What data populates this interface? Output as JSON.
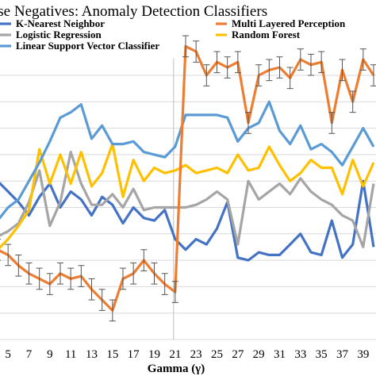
{
  "chart_data": {
    "type": "line",
    "title": "lse Negatives: Anomaly Detection Classifiers",
    "xlabel": "Gamma (γ)",
    "ylabel": "",
    "x": [
      4,
      5,
      6,
      7,
      8,
      9,
      10,
      11,
      12,
      13,
      14,
      15,
      16,
      17,
      18,
      19,
      20,
      21,
      22,
      23,
      24,
      25,
      26,
      27,
      28,
      29,
      30,
      31,
      32,
      33,
      34,
      35,
      36,
      37,
      38,
      39,
      40
    ],
    "xtick_labels": [
      "5",
      "7",
      "9",
      "11",
      "13",
      "15",
      "17",
      "19",
      "21",
      "23",
      "25",
      "27",
      "29",
      "31",
      "33",
      "35",
      "37",
      "39"
    ],
    "xlim": [
      4,
      40
    ],
    "ylim": [
      0,
      10
    ],
    "grid": true,
    "legend": "top",
    "series": [
      {
        "name": "K-Nearest Neighbor",
        "color": "#4472c4",
        "values": [
          6.0,
          5.6,
          5.2,
          4.7,
          5.4,
          5.9,
          5.0,
          5.6,
          5.3,
          4.7,
          5.4,
          5.1,
          4.4,
          5.0,
          4.6,
          4.5,
          4.9,
          3.8,
          3.4,
          3.8,
          3.6,
          4.2,
          5.2,
          3.1,
          3.0,
          3.3,
          3.2,
          3.2,
          3.6,
          4.0,
          3.3,
          3.2,
          4.5,
          3.1,
          3.6,
          6.0,
          3.5
        ],
        "error": []
      },
      {
        "name": "Logistic Regression",
        "color": "#a5a5a5",
        "values": [
          3.9,
          4.1,
          4.4,
          5.2,
          6.4,
          4.3,
          5.2,
          7.1,
          5.9,
          5.1,
          5.1,
          5.5,
          5.0,
          5.7,
          4.9,
          5.0,
          5.0,
          5.0,
          5.0,
          5.1,
          5.3,
          5.6,
          5.3,
          3.6,
          6.0,
          5.3,
          5.6,
          5.9,
          5.5,
          6.1,
          5.6,
          5.3,
          5.1,
          4.7,
          4.5,
          3.5,
          5.9
        ],
        "error": []
      },
      {
        "name": "Linear Support Vector Classifier",
        "color": "#5b9bd5",
        "values": [
          4.5,
          5.0,
          5.3,
          6.0,
          6.7,
          7.5,
          8.4,
          8.6,
          8.9,
          7.6,
          8.1,
          7.4,
          7.4,
          7.5,
          7.1,
          7.0,
          6.9,
          7.3,
          8.5,
          8.5,
          8.5,
          8.5,
          8.4,
          7.5,
          8.0,
          8.2,
          9.0,
          7.9,
          7.4,
          8.1,
          7.2,
          7.4,
          7.1,
          6.6,
          7.3,
          8.0,
          7.3
        ],
        "error": []
      },
      {
        "name": "Multi Layered Perception",
        "color": "#ed7d31",
        "values": [
          3.4,
          3.2,
          2.8,
          2.5,
          2.3,
          2.1,
          2.5,
          2.3,
          2.4,
          1.9,
          1.5,
          1.1,
          2.3,
          2.5,
          3.0,
          2.5,
          2.1,
          1.8,
          11.1,
          10.9,
          10.0,
          10.5,
          10.3,
          10.5,
          8.2,
          10.0,
          10.2,
          10.3,
          9.9,
          10.6,
          10.4,
          10.5,
          8.2,
          10.2,
          9.0,
          10.6,
          10.0
        ],
        "error": [
          0.4,
          0.4,
          0.4,
          0.4,
          0.4,
          0.4,
          0.4,
          0.4,
          0.4,
          0.4,
          0.4,
          0.4,
          0.4,
          0.4,
          0.4,
          0.4,
          0.4,
          0.4,
          0.4,
          0.4,
          0.4,
          0.4,
          0.4,
          0.4,
          0.4,
          0.4,
          0.4,
          0.4,
          0.4,
          0.4,
          0.4,
          0.4,
          0.4,
          0.4,
          0.4,
          0.4,
          0.4
        ]
      },
      {
        "name": "Random Forest",
        "color": "#ffc000",
        "values": [
          3.4,
          3.8,
          4.3,
          4.9,
          7.2,
          5.9,
          7.0,
          5.9,
          7.1,
          5.8,
          6.3,
          7.4,
          5.4,
          6.8,
          6.0,
          6.5,
          6.3,
          6.4,
          6.6,
          6.3,
          6.4,
          6.5,
          6.3,
          7.0,
          6.4,
          6.5,
          7.3,
          6.6,
          6.0,
          6.3,
          6.8,
          6.5,
          6.5,
          5.5,
          6.8,
          5.8,
          6.7
        ],
        "error": []
      }
    ]
  }
}
